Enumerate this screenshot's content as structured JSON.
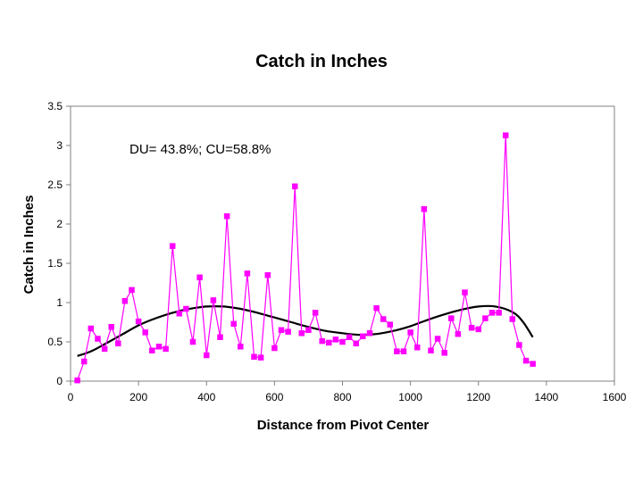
{
  "chart_data": {
    "type": "scatter",
    "title": "Catch in Inches",
    "xlabel": "Distance from Pivot Center",
    "ylabel": "Catch in Inches",
    "xlim": [
      0,
      1600
    ],
    "ylim": [
      0,
      3.5
    ],
    "xticks": [
      0,
      200,
      400,
      600,
      800,
      1000,
      1200,
      1400,
      1600
    ],
    "yticks": [
      0,
      0.5,
      1,
      1.5,
      2,
      2.5,
      3,
      3.5
    ],
    "xtick_labels": [
      "0",
      "200",
      "400",
      "600",
      "800",
      "1000",
      "1200",
      "1400",
      "1600"
    ],
    "ytick_labels": [
      "0",
      "0.5",
      "1",
      "1.5",
      "2",
      "2.5",
      "3",
      "3.5"
    ],
    "grid": false,
    "legend": "none",
    "annotation": "DU= 43.8%; CU=58.8%",
    "colors": {
      "series": "#ff00ff",
      "trend": "#000000",
      "axis": "#808080"
    },
    "series": [
      {
        "x": [
          20,
          40,
          60,
          80,
          100,
          120,
          140,
          160,
          180,
          200,
          220,
          240,
          260,
          280,
          300,
          320,
          340,
          360,
          380,
          400,
          420,
          440,
          460,
          480,
          500,
          520,
          540,
          560,
          580,
          600,
          620,
          640,
          660,
          680,
          700,
          720,
          740,
          760,
          780,
          800,
          820,
          840,
          860,
          880,
          900,
          920,
          940,
          960,
          980,
          1000,
          1020,
          1040,
          1060,
          1080,
          1100,
          1120,
          1140,
          1160,
          1180,
          1200,
          1220,
          1240,
          1260,
          1280,
          1300,
          1320,
          1340,
          1360
        ],
        "y": [
          0.01,
          0.25,
          0.67,
          0.54,
          0.41,
          0.69,
          0.48,
          1.02,
          1.16,
          0.76,
          0.62,
          0.39,
          0.44,
          0.41,
          1.72,
          0.86,
          0.92,
          0.5,
          1.32,
          0.33,
          1.03,
          0.56,
          2.1,
          0.73,
          0.44,
          1.37,
          0.31,
          0.3,
          1.35,
          0.42,
          0.65,
          0.63,
          2.48,
          0.61,
          0.65,
          0.87,
          0.51,
          0.49,
          0.53,
          0.5,
          0.56,
          0.48,
          0.57,
          0.61,
          0.93,
          0.79,
          0.72,
          0.38,
          0.38,
          0.62,
          0.43,
          2.19,
          0.39,
          0.54,
          0.36,
          0.8,
          0.6,
          1.13,
          0.68,
          0.66,
          0.8,
          0.87,
          0.87,
          3.13,
          0.79,
          0.46,
          0.26,
          0.22
        ]
      }
    ],
    "trendline": {
      "x": [
        20,
        60,
        100,
        150,
        200,
        250,
        300,
        350,
        400,
        450,
        500,
        550,
        600,
        650,
        700,
        750,
        800,
        850,
        900,
        950,
        1000,
        1050,
        1100,
        1150,
        1200,
        1250,
        1300,
        1330,
        1360
      ],
      "y": [
        0.32,
        0.38,
        0.47,
        0.59,
        0.71,
        0.8,
        0.87,
        0.92,
        0.95,
        0.95,
        0.92,
        0.87,
        0.81,
        0.75,
        0.69,
        0.64,
        0.61,
        0.59,
        0.6,
        0.64,
        0.7,
        0.78,
        0.85,
        0.91,
        0.95,
        0.95,
        0.88,
        0.76,
        0.56
      ]
    }
  }
}
